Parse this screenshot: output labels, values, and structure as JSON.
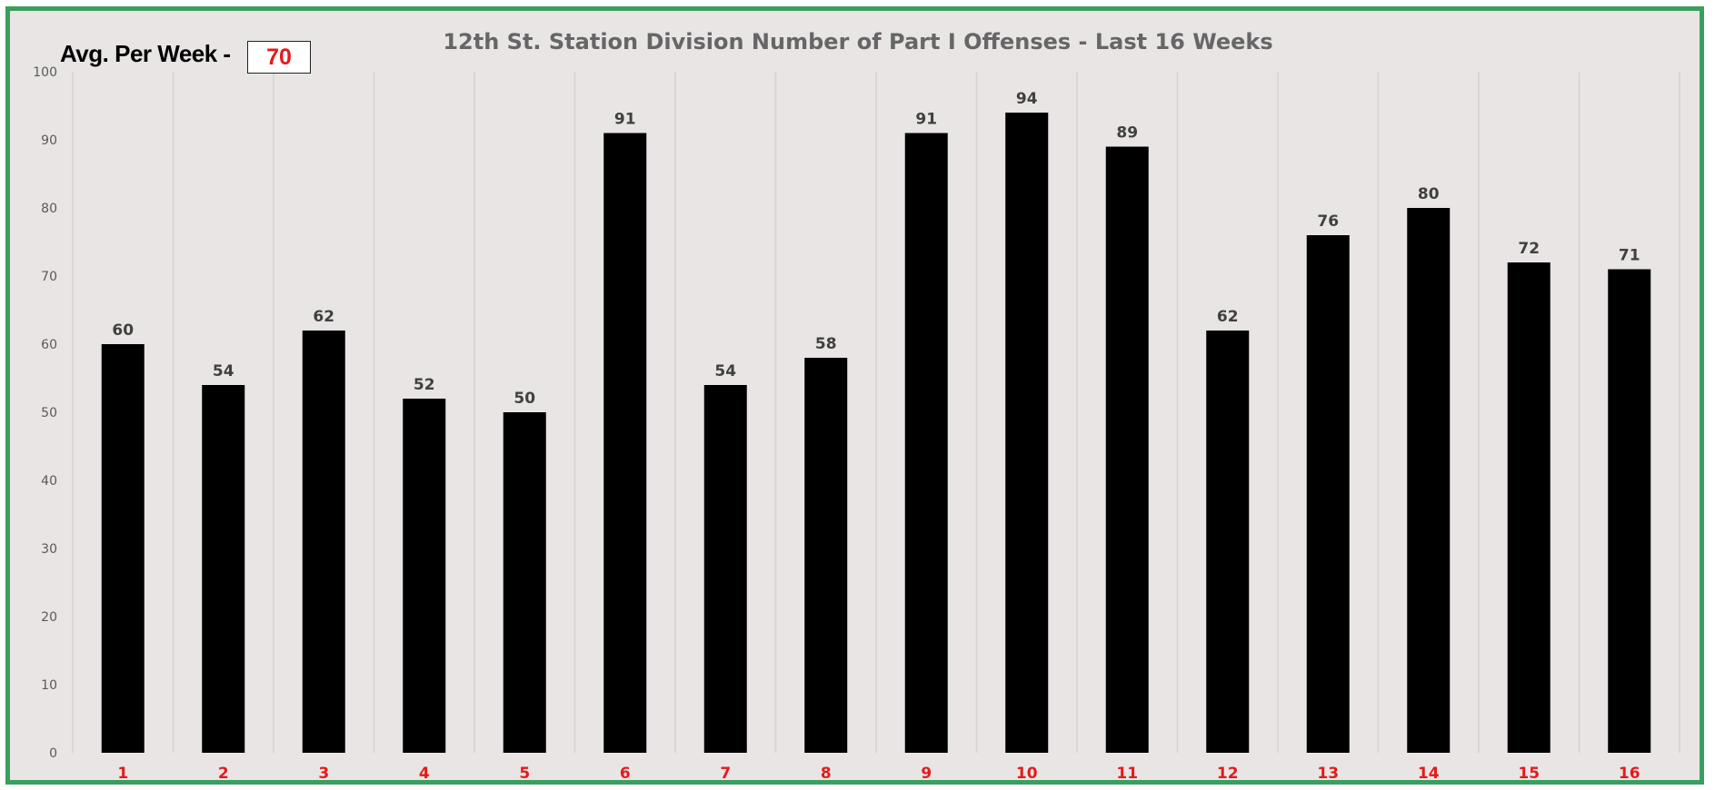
{
  "summary": {
    "label": "Avg. Per Week -",
    "value": "70"
  },
  "colors": {
    "frame": "#3a9f5e",
    "background": "#e9e5e5",
    "bar": "#000000",
    "gridline": "#d6d2d2",
    "x_tick": "#e31b1b",
    "avg_value": "#e31b1b"
  },
  "chart_data": {
    "type": "bar",
    "title": "12th St. Station Division Number of Part I Offenses - Last 16 Weeks",
    "xlabel": "",
    "ylabel": "",
    "categories": [
      "1",
      "2",
      "3",
      "4",
      "5",
      "6",
      "7",
      "8",
      "9",
      "10",
      "11",
      "12",
      "13",
      "14",
      "15",
      "16"
    ],
    "values": [
      60,
      54,
      62,
      52,
      50,
      91,
      54,
      58,
      91,
      94,
      89,
      62,
      76,
      80,
      72,
      71
    ],
    "ylim": [
      0,
      100
    ],
    "yticks": [
      0,
      10,
      20,
      30,
      40,
      50,
      60,
      70,
      80,
      90,
      100
    ],
    "grid": "vertical",
    "legend": "none",
    "data_labels": true
  }
}
